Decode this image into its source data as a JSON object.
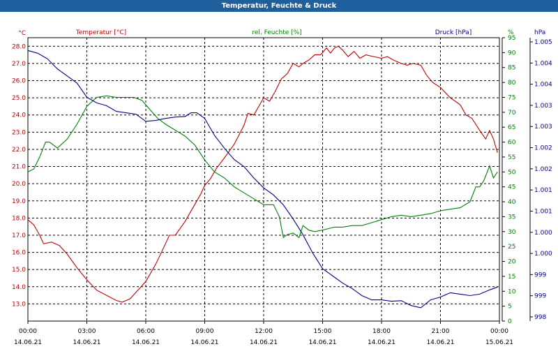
{
  "window": {
    "title": "Temperatur, Feuchte & Druck"
  },
  "chart_data": {
    "type": "line",
    "title": "Temperatur, Feuchte & Druck",
    "grid": true,
    "x": {
      "ticks": [
        {
          "time": "00:00",
          "date": "14.06.21"
        },
        {
          "time": "03:00",
          "date": "14.06.21"
        },
        {
          "time": "06:00",
          "date": "14.06.21"
        },
        {
          "time": "09:00",
          "date": "14.06.21"
        },
        {
          "time": "12:00",
          "date": "14.06.21"
        },
        {
          "time": "15:00",
          "date": "14.06.21"
        },
        {
          "time": "18:00",
          "date": "14.06.21"
        },
        {
          "time": "21:00",
          "date": "14.06.21"
        },
        {
          "time": "00:00",
          "date": "15.06.21"
        }
      ],
      "range_hours": [
        0,
        24
      ]
    },
    "axes": {
      "temperature": {
        "label": "Temperatur [°C]",
        "unit": "°C",
        "color": "#c00000",
        "side": "left",
        "ylim": [
          12.0,
          28.5
        ],
        "ticks": [
          "13.0",
          "14.0",
          "15.0",
          "16.0",
          "17.0",
          "18.0",
          "19.0",
          "20.0",
          "21.0",
          "22.0",
          "23.0",
          "24.0",
          "25.0",
          "26.0",
          "27.0",
          "28.0"
        ]
      },
      "humidity": {
        "label": "rel. Feuchte [%]",
        "unit": "%",
        "color": "#008000",
        "side": "right-inner",
        "ylim": [
          0,
          95
        ],
        "ticks": [
          "0",
          "5",
          "10",
          "15",
          "20",
          "25",
          "30",
          "35",
          "40",
          "45",
          "50",
          "55",
          "60",
          "65",
          "70",
          "75",
          "80",
          "85",
          "90",
          "95"
        ]
      },
      "pressure": {
        "label": "Druck [hPa]",
        "unit": "hPa",
        "color": "#00008b",
        "side": "right-outer",
        "tick_labels": [
          "998",
          "999",
          "999",
          "1.000",
          "1.000",
          "1.001",
          "1.001",
          "1.002",
          "1.002",
          "1.003",
          "1.003",
          "1.004",
          "1.004",
          "1.005"
        ]
      }
    },
    "series": [
      {
        "name": "Temperatur [°C]",
        "axis": "temperature",
        "color": "#c00000",
        "points": [
          [
            0,
            17.9
          ],
          [
            0.3,
            17.6
          ],
          [
            0.6,
            17.0
          ],
          [
            0.8,
            16.5
          ],
          [
            1.2,
            16.6
          ],
          [
            1.6,
            16.4
          ],
          [
            2.0,
            15.9
          ],
          [
            2.5,
            15.1
          ],
          [
            3.0,
            14.4
          ],
          [
            3.5,
            13.8
          ],
          [
            4.0,
            13.5
          ],
          [
            4.5,
            13.2
          ],
          [
            4.8,
            13.1
          ],
          [
            5.2,
            13.3
          ],
          [
            5.6,
            13.8
          ],
          [
            6.0,
            14.3
          ],
          [
            6.5,
            15.3
          ],
          [
            7.0,
            16.5
          ],
          [
            7.2,
            17.0
          ],
          [
            7.5,
            17.0
          ],
          [
            8.0,
            17.8
          ],
          [
            8.5,
            18.8
          ],
          [
            8.8,
            19.4
          ],
          [
            9.0,
            19.9
          ],
          [
            9.3,
            20.3
          ],
          [
            9.6,
            20.9
          ],
          [
            10.0,
            21.5
          ],
          [
            10.5,
            22.3
          ],
          [
            11.0,
            23.4
          ],
          [
            11.2,
            24.1
          ],
          [
            11.5,
            24.0
          ],
          [
            11.8,
            24.6
          ],
          [
            12.0,
            25.0
          ],
          [
            12.3,
            24.8
          ],
          [
            12.6,
            25.4
          ],
          [
            12.9,
            26.1
          ],
          [
            13.2,
            26.4
          ],
          [
            13.5,
            27.0
          ],
          [
            13.8,
            26.8
          ],
          [
            14.0,
            27.0
          ],
          [
            14.3,
            27.2
          ],
          [
            14.6,
            27.5
          ],
          [
            14.9,
            27.5
          ],
          [
            15.2,
            27.9
          ],
          [
            15.4,
            27.6
          ],
          [
            15.6,
            27.9
          ],
          [
            15.8,
            28.0
          ],
          [
            16.0,
            27.8
          ],
          [
            16.3,
            27.4
          ],
          [
            16.6,
            27.7
          ],
          [
            16.9,
            27.3
          ],
          [
            17.2,
            27.5
          ],
          [
            17.6,
            27.4
          ],
          [
            18.0,
            27.3
          ],
          [
            18.3,
            27.4
          ],
          [
            18.6,
            27.2
          ],
          [
            19.0,
            27.0
          ],
          [
            19.3,
            26.9
          ],
          [
            19.6,
            27.0
          ],
          [
            20.0,
            26.9
          ],
          [
            20.3,
            26.3
          ],
          [
            20.6,
            25.9
          ],
          [
            21.0,
            25.6
          ],
          [
            21.5,
            25.0
          ],
          [
            22.0,
            24.6
          ],
          [
            22.3,
            24.0
          ],
          [
            22.6,
            23.8
          ],
          [
            23.0,
            23.1
          ],
          [
            23.3,
            22.6
          ],
          [
            23.5,
            23.1
          ],
          [
            23.7,
            22.6
          ],
          [
            23.9,
            21.8
          ]
        ]
      },
      {
        "name": "rel. Feuchte [%]",
        "axis": "humidity",
        "color": "#008000",
        "points": [
          [
            0,
            50
          ],
          [
            0.3,
            51
          ],
          [
            0.6,
            55
          ],
          [
            0.9,
            60
          ],
          [
            1.1,
            60
          ],
          [
            1.5,
            58
          ],
          [
            2.0,
            61
          ],
          [
            2.5,
            66
          ],
          [
            3.0,
            72
          ],
          [
            3.5,
            75
          ],
          [
            4.0,
            75.5
          ],
          [
            4.5,
            75
          ],
          [
            5.0,
            75
          ],
          [
            5.4,
            75
          ],
          [
            5.8,
            74
          ],
          [
            6.2,
            71
          ],
          [
            6.6,
            68
          ],
          [
            7.0,
            66
          ],
          [
            7.5,
            64
          ],
          [
            8.0,
            62
          ],
          [
            8.5,
            59
          ],
          [
            9.0,
            54
          ],
          [
            9.5,
            50
          ],
          [
            10.0,
            48
          ],
          [
            10.5,
            45
          ],
          [
            11.0,
            43
          ],
          [
            11.5,
            41
          ],
          [
            12.0,
            39
          ],
          [
            12.5,
            39
          ],
          [
            12.8,
            35
          ],
          [
            13.0,
            28
          ],
          [
            13.2,
            29
          ],
          [
            13.5,
            29.5
          ],
          [
            13.8,
            28
          ],
          [
            14.0,
            32
          ],
          [
            14.3,
            30.5
          ],
          [
            14.6,
            30
          ],
          [
            15.0,
            30.5
          ],
          [
            15.3,
            31
          ],
          [
            15.6,
            31.5
          ],
          [
            16.0,
            31.5
          ],
          [
            16.5,
            32
          ],
          [
            17.0,
            32
          ],
          [
            17.5,
            33
          ],
          [
            18.0,
            34
          ],
          [
            18.5,
            35
          ],
          [
            19.0,
            35.5
          ],
          [
            19.5,
            35
          ],
          [
            20.0,
            35.5
          ],
          [
            20.5,
            36
          ],
          [
            21.0,
            37
          ],
          [
            21.5,
            37.5
          ],
          [
            22.0,
            38
          ],
          [
            22.5,
            40
          ],
          [
            22.8,
            45
          ],
          [
            23.0,
            45
          ],
          [
            23.2,
            47
          ],
          [
            23.5,
            52
          ],
          [
            23.7,
            48
          ],
          [
            23.9,
            50
          ]
        ]
      },
      {
        "name": "Druck [hPa]",
        "axis": "pressure",
        "color": "#00008b",
        "points_axis_units": "relative (0 = bottom of plot, 1 = top of plot)",
        "points": [
          [
            0,
            0.955
          ],
          [
            0.5,
            0.945
          ],
          [
            1.0,
            0.925
          ],
          [
            1.5,
            0.89
          ],
          [
            2.0,
            0.865
          ],
          [
            2.5,
            0.84
          ],
          [
            3.0,
            0.79
          ],
          [
            3.5,
            0.77
          ],
          [
            4.0,
            0.76
          ],
          [
            4.5,
            0.74
          ],
          [
            5.0,
            0.735
          ],
          [
            5.5,
            0.73
          ],
          [
            6.0,
            0.705
          ],
          [
            6.5,
            0.708
          ],
          [
            7.0,
            0.715
          ],
          [
            7.5,
            0.72
          ],
          [
            8.0,
            0.722
          ],
          [
            8.3,
            0.735
          ],
          [
            8.6,
            0.735
          ],
          [
            9.0,
            0.715
          ],
          [
            9.5,
            0.655
          ],
          [
            10.0,
            0.61
          ],
          [
            10.5,
            0.57
          ],
          [
            11.0,
            0.545
          ],
          [
            11.5,
            0.505
          ],
          [
            12.0,
            0.47
          ],
          [
            12.5,
            0.445
          ],
          [
            13.0,
            0.41
          ],
          [
            13.5,
            0.36
          ],
          [
            14.0,
            0.305
          ],
          [
            14.5,
            0.24
          ],
          [
            15.0,
            0.185
          ],
          [
            15.5,
            0.16
          ],
          [
            16.0,
            0.135
          ],
          [
            16.5,
            0.115
          ],
          [
            17.0,
            0.09
          ],
          [
            17.5,
            0.075
          ],
          [
            18.0,
            0.075
          ],
          [
            18.5,
            0.07
          ],
          [
            19.0,
            0.072
          ],
          [
            19.5,
            0.055
          ],
          [
            20.0,
            0.047
          ],
          [
            20.5,
            0.075
          ],
          [
            21.0,
            0.085
          ],
          [
            21.5,
            0.1
          ],
          [
            22.0,
            0.095
          ],
          [
            22.5,
            0.09
          ],
          [
            23.0,
            0.095
          ],
          [
            23.5,
            0.11
          ],
          [
            23.9,
            0.12
          ]
        ]
      }
    ]
  }
}
